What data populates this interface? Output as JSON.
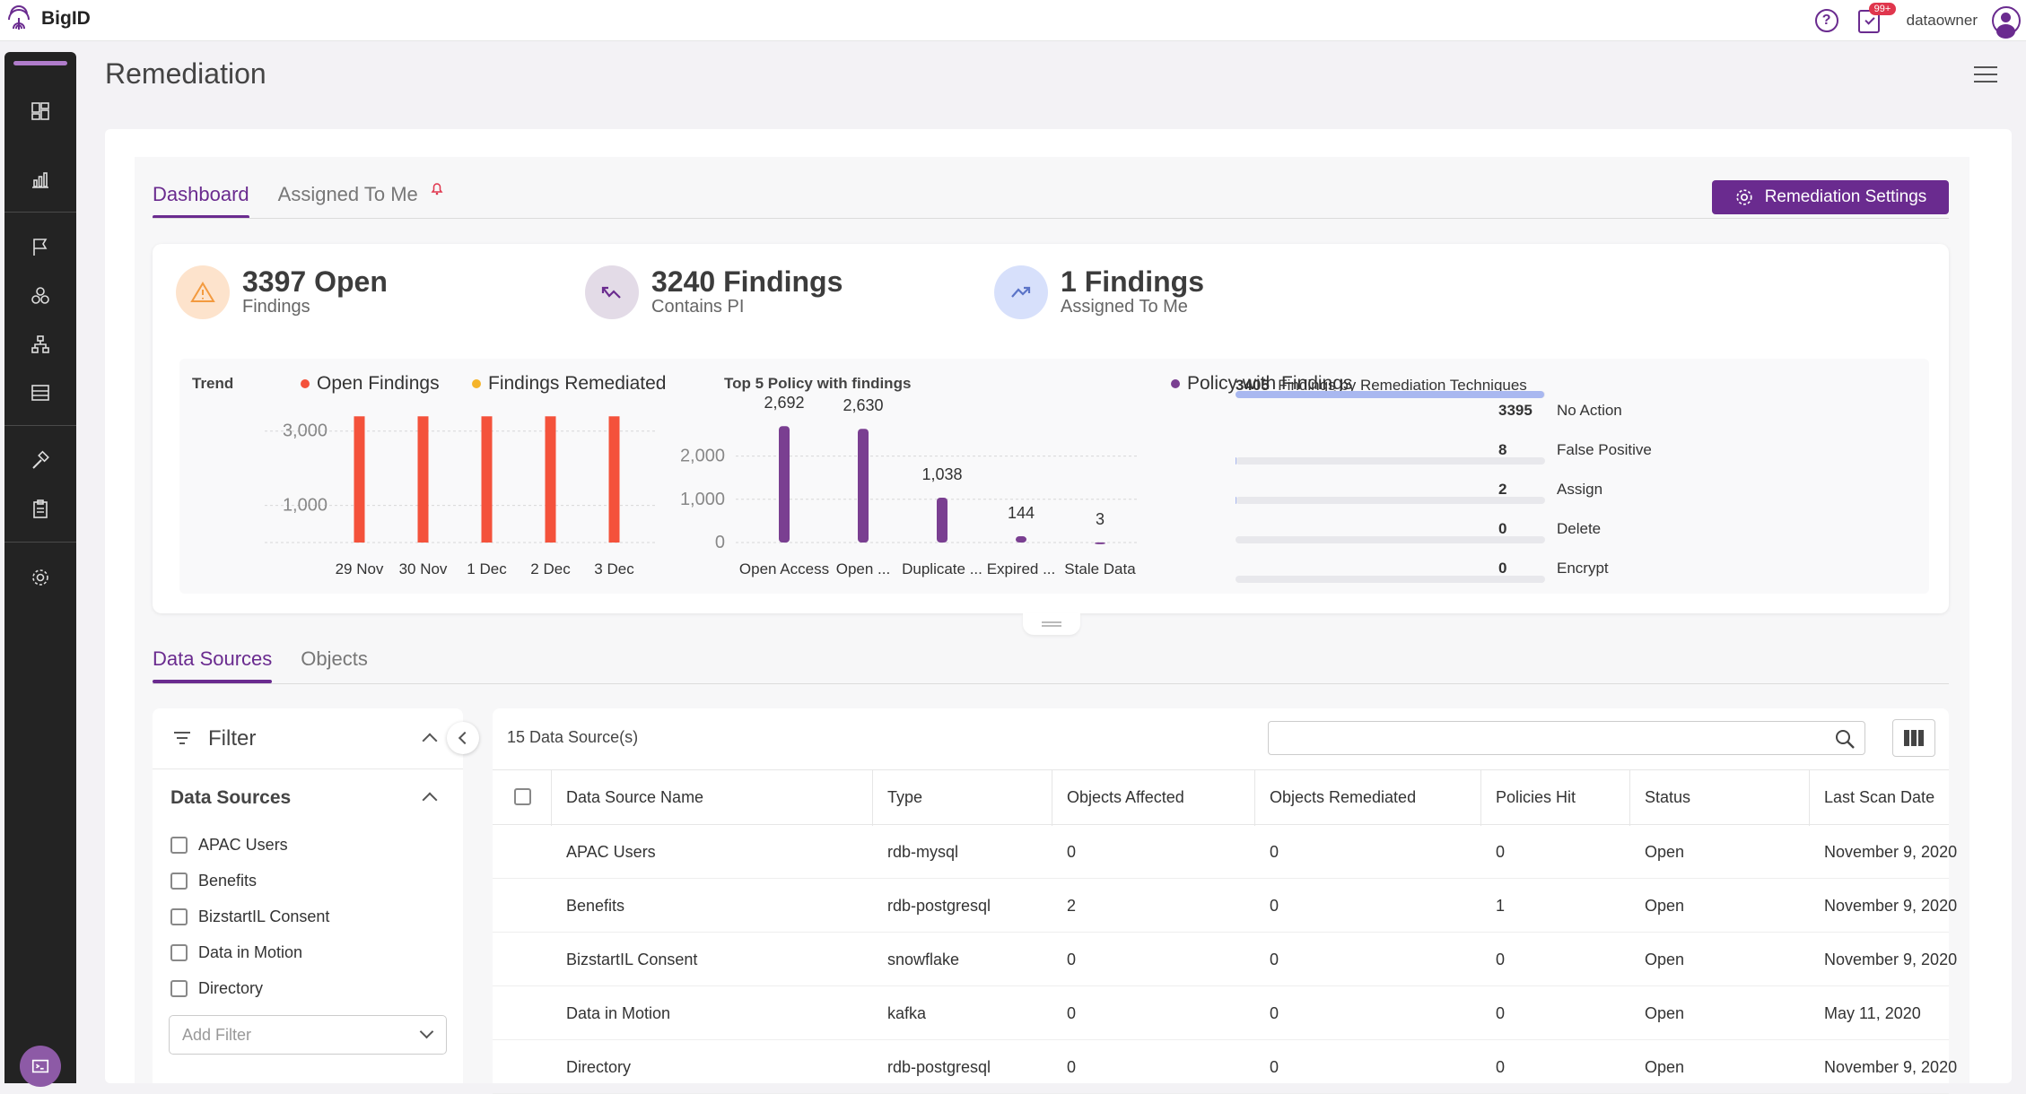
{
  "app": {
    "logo_text": "BigID",
    "user": "dataowner",
    "notifications": "99+"
  },
  "page": {
    "title": "Remediation"
  },
  "tabs_top": [
    {
      "label": "Dashboard"
    },
    {
      "label": "Assigned To Me"
    }
  ],
  "remediation_settings_label": "Remediation Settings",
  "kpis": [
    {
      "value": "3397 Open",
      "sub": "Findings"
    },
    {
      "value": "3240 Findings",
      "sub": "Contains PI"
    },
    {
      "value": "1 Findings",
      "sub": "Assigned To Me"
    }
  ],
  "colors": {
    "accent": "#6a2b8f",
    "open_findings": "#f4523b",
    "remediated": "#f5b42a",
    "policy": "#7a3f91",
    "tech_bar": "#a9b8f0"
  },
  "trend": {
    "title": "Trend",
    "legend": [
      {
        "name": "Open Findings"
      },
      {
        "name": "Findings Remediated"
      }
    ]
  },
  "policy_chart": {
    "title": "Top 5 Policy with findings",
    "legend": "Policy with Findings"
  },
  "techniques": {
    "total": "3405",
    "title": "Findings by Remediation Techniques",
    "items": [
      {
        "value": "3395",
        "label": "No Action",
        "share": 0.997
      },
      {
        "value": "8",
        "label": "False Positive",
        "share": 0.002
      },
      {
        "value": "2",
        "label": "Assign",
        "share": 0.0006
      },
      {
        "value": "0",
        "label": "Delete",
        "share": 0
      },
      {
        "value": "0",
        "label": "Encrypt",
        "share": 0
      }
    ]
  },
  "chart_data": [
    {
      "type": "bar",
      "title": "Trend",
      "categories": [
        "29 Nov",
        "30 Nov",
        "1 Dec",
        "2 Dec",
        "3 Dec"
      ],
      "series": [
        {
          "name": "Open Findings",
          "values": [
            3397,
            3397,
            3397,
            3397,
            3397
          ]
        },
        {
          "name": "Findings Remediated",
          "values": [
            0,
            0,
            0,
            0,
            0
          ]
        }
      ],
      "yticks": [
        "1,000",
        "3,000"
      ],
      "ylim": [
        0,
        3500
      ]
    },
    {
      "type": "bar",
      "title": "Top 5 Policy with findings",
      "categories": [
        "Open Access",
        "Open ...",
        "Duplicate ...",
        "Expired ...",
        "Stale Data"
      ],
      "series": [
        {
          "name": "Policy with Findings",
          "values": [
            2692,
            2630,
            1038,
            144,
            3
          ]
        }
      ],
      "data_labels": [
        "2,692",
        "2,630",
        "1,038",
        "144",
        "3"
      ],
      "yticks": [
        "0",
        "1,000",
        "2,000"
      ],
      "ylim": [
        0,
        2800
      ]
    }
  ],
  "tabs_bottom": [
    {
      "label": "Data Sources"
    },
    {
      "label": "Objects"
    }
  ],
  "filter": {
    "title": "Filter",
    "section": "Data Sources",
    "items": [
      "APAC Users",
      "Benefits",
      "BizstartIL Consent",
      "Data in Motion",
      "Directory"
    ],
    "add_filter_placeholder": "Add Filter"
  },
  "table": {
    "count": "15 Data Source(s)",
    "columns": [
      "Data Source Name",
      "Type",
      "Objects Affected",
      "Objects Remediated",
      "Policies Hit",
      "Status",
      "Last Scan Date"
    ],
    "rows": [
      [
        "APAC Users",
        "rdb-mysql",
        "0",
        "0",
        "0",
        "Open",
        "November 9, 2020"
      ],
      [
        "Benefits",
        "rdb-postgresql",
        "2",
        "0",
        "1",
        "Open",
        "November 9, 2020"
      ],
      [
        "BizstartIL Consent",
        "snowflake",
        "0",
        "0",
        "0",
        "Open",
        "November 9, 2020"
      ],
      [
        "Data in Motion",
        "kafka",
        "0",
        "0",
        "0",
        "Open",
        "May 11, 2020"
      ],
      [
        "Directory",
        "rdb-postgresql",
        "0",
        "0",
        "0",
        "Open",
        "November 9, 2020"
      ]
    ]
  }
}
